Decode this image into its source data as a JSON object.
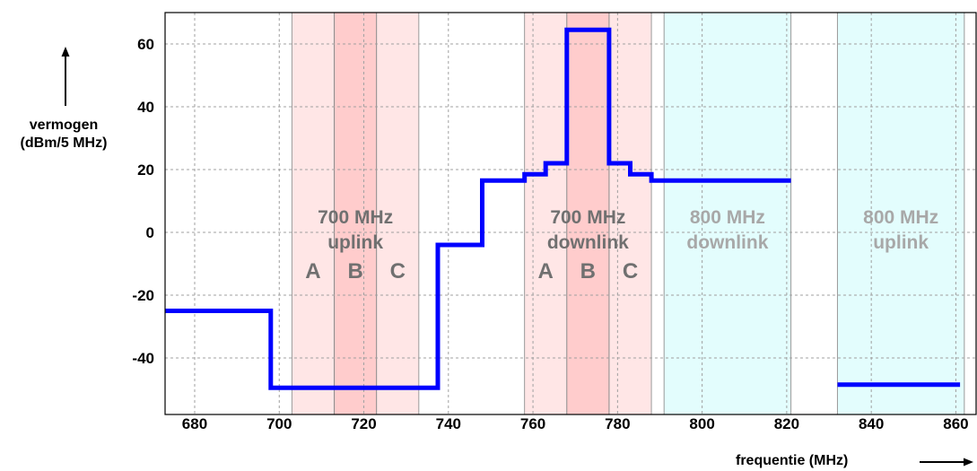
{
  "chart_data": {
    "type": "line",
    "step": true,
    "xlabel": "frequentie (MHz)",
    "ylabel_lines": [
      "vermogen",
      "(dBm/5 MHz)"
    ],
    "xlim": [
      673,
      865
    ],
    "ylim": [
      -58,
      70
    ],
    "xticks": [
      680,
      700,
      720,
      740,
      760,
      780,
      800,
      820,
      840,
      860
    ],
    "yticks": [
      60,
      40,
      20,
      0,
      -20,
      -40
    ],
    "grid": true,
    "line_color": "#0000ff",
    "series": [
      {
        "segments": [
          {
            "x": [
              673,
              698,
              698,
              737.5,
              737.5,
              748,
              748,
              758,
              758,
              763,
              763,
              768,
              768,
              778,
              778,
              783,
              783,
              788,
              788,
              821
            ],
            "y": [
              -25,
              -25,
              -49.5,
              -49.5,
              -4,
              -4,
              16.5,
              16.5,
              18.5,
              18.5,
              22,
              22,
              64.5,
              64.5,
              22,
              22,
              18.5,
              18.5,
              16.5,
              16.5
            ]
          },
          {
            "x": [
              832,
              861
            ],
            "y": [
              -48.5,
              -48.5
            ]
          }
        ]
      }
    ],
    "bands": [
      {
        "title_lines": [
          "700 MHz",
          "uplink"
        ],
        "range": [
          703,
          733
        ],
        "color": "#ffe6e6",
        "text_color": "#707070",
        "blocks": [
          {
            "label": "A",
            "range": [
              703,
              713
            ],
            "color": "#ffe6e6"
          },
          {
            "label": "B",
            "range": [
              713,
              723
            ],
            "color": "#ffcccc"
          },
          {
            "label": "C",
            "range": [
              723,
              733
            ],
            "color": "#ffe6e6"
          }
        ]
      },
      {
        "title_lines": [
          "700 MHz",
          "downlink"
        ],
        "range": [
          758,
          788
        ],
        "color": "#ffe6e6",
        "text_color": "#707070",
        "blocks": [
          {
            "label": "A",
            "range": [
              758,
              768
            ],
            "color": "#ffe6e6"
          },
          {
            "label": "B",
            "range": [
              768,
              778
            ],
            "color": "#ffcccc"
          },
          {
            "label": "C",
            "range": [
              778,
              788
            ],
            "color": "#ffe6e6"
          }
        ]
      },
      {
        "title_lines": [
          "800 MHz",
          "downlink"
        ],
        "range": [
          791,
          821
        ],
        "color": "#e3fdfd",
        "text_color": "#a8a8a8",
        "blocks": []
      },
      {
        "title_lines": [
          "800 MHz",
          "uplink"
        ],
        "range": [
          832,
          862
        ],
        "color": "#e3fdfd",
        "text_color": "#a8a8a8",
        "blocks": []
      }
    ]
  }
}
